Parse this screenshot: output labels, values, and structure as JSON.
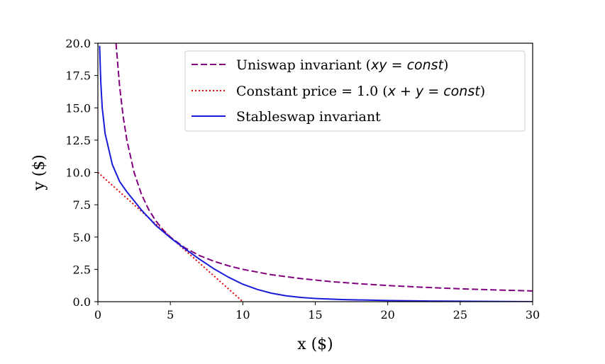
{
  "chart_data": {
    "type": "line",
    "title": "",
    "xlabel": "x ($)",
    "ylabel": "y ($)",
    "xlim": [
      0,
      30
    ],
    "ylim": [
      0,
      20
    ],
    "x_ticks": [
      "0",
      "5",
      "10",
      "15",
      "20",
      "25",
      "30"
    ],
    "y_ticks": [
      "0.0",
      "2.5",
      "5.0",
      "7.5",
      "10.0",
      "12.5",
      "15.0",
      "17.5",
      "20.0"
    ],
    "grid": false,
    "legend_position": "top-right",
    "series": [
      {
        "name": "Uniswap invariant (xy = const)",
        "legend_parts": [
          {
            "t": "Uniswap invariant (",
            "s": "n"
          },
          {
            "t": "xy",
            "s": "m"
          },
          {
            "t": " = ",
            "s": "o"
          },
          {
            "t": "const",
            "s": "m"
          },
          {
            "t": ")",
            "s": "n"
          }
        ],
        "color": "#800080",
        "style": "dashed",
        "x": [
          1.25,
          1.5,
          1.75,
          2,
          2.5,
          3,
          3.5,
          4,
          4.5,
          5,
          6,
          7,
          8,
          9,
          10,
          12,
          14,
          16,
          18,
          20,
          22,
          24,
          26,
          28,
          30
        ],
        "y": [
          20,
          16.67,
          14.29,
          12.5,
          10,
          8.33,
          7.14,
          6.25,
          5.56,
          5,
          4.17,
          3.57,
          3.13,
          2.78,
          2.5,
          2.08,
          1.79,
          1.56,
          1.39,
          1.25,
          1.14,
          1.04,
          0.96,
          0.89,
          0.83
        ]
      },
      {
        "name": "Constant price = 1.0 (x + y = const)",
        "legend_parts": [
          {
            "t": "Constant price = 1.0 (",
            "s": "n"
          },
          {
            "t": "x",
            "s": "m"
          },
          {
            "t": " + ",
            "s": "o"
          },
          {
            "t": "y",
            "s": "m"
          },
          {
            "t": " = ",
            "s": "o"
          },
          {
            "t": "const",
            "s": "m"
          },
          {
            "t": ")",
            "s": "n"
          }
        ],
        "color": "#e00000",
        "style": "dotted",
        "x": [
          0,
          10
        ],
        "y": [
          10,
          0
        ]
      },
      {
        "name": "Stableswap invariant",
        "legend_parts": [
          {
            "t": "Stableswap invariant",
            "s": "n"
          }
        ],
        "color": "#1a1adb",
        "style": "solid",
        "x": [
          0.12,
          0.2,
          0.3,
          0.5,
          0.75,
          1,
          1.5,
          2,
          3,
          4,
          5,
          6,
          7,
          8,
          9,
          10,
          11,
          12,
          13,
          14,
          15,
          17,
          20,
          23,
          26,
          30
        ],
        "y": [
          19.8,
          17.0,
          15.0,
          13.0,
          11.8,
          10.6,
          9.3,
          8.5,
          7.1,
          5.9,
          4.95,
          4.1,
          3.3,
          2.55,
          1.9,
          1.35,
          0.95,
          0.65,
          0.45,
          0.33,
          0.25,
          0.16,
          0.09,
          0.05,
          0.03,
          0.0
        ]
      }
    ]
  }
}
